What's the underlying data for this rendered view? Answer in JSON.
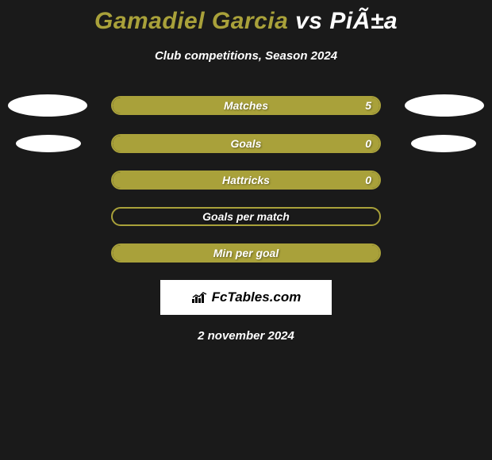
{
  "title": {
    "player1": "Gamadiel Garcia",
    "vs": "vs",
    "player2": "PiÃ±a",
    "color1": "#a9a13a",
    "color_vs": "#ffffff",
    "color2": "#ffffff"
  },
  "subtitle": "Club competitions, Season 2024",
  "bars": [
    {
      "label": "Matches",
      "value": "5",
      "fill_pct": 100,
      "fill_color": "#a9a13a",
      "border_color": "#a9a13a",
      "show_value": true,
      "ovals": "large"
    },
    {
      "label": "Goals",
      "value": "0",
      "fill_pct": 100,
      "fill_color": "#a9a13a",
      "border_color": "#a9a13a",
      "show_value": true,
      "ovals": "small"
    },
    {
      "label": "Hattricks",
      "value": "0",
      "fill_pct": 100,
      "fill_color": "#a9a13a",
      "border_color": "#a9a13a",
      "show_value": true,
      "ovals": "none"
    },
    {
      "label": "Goals per match",
      "value": "",
      "fill_pct": 0,
      "fill_color": "#a9a13a",
      "border_color": "#a9a13a",
      "show_value": false,
      "ovals": "none"
    },
    {
      "label": "Min per goal",
      "value": "",
      "fill_pct": 100,
      "fill_color": "#a9a13a",
      "border_color": "#a9a13a",
      "show_value": false,
      "ovals": "none"
    }
  ],
  "logo_text": "FcTables.com",
  "date": "2 november 2024",
  "background": "#1a1a1a"
}
